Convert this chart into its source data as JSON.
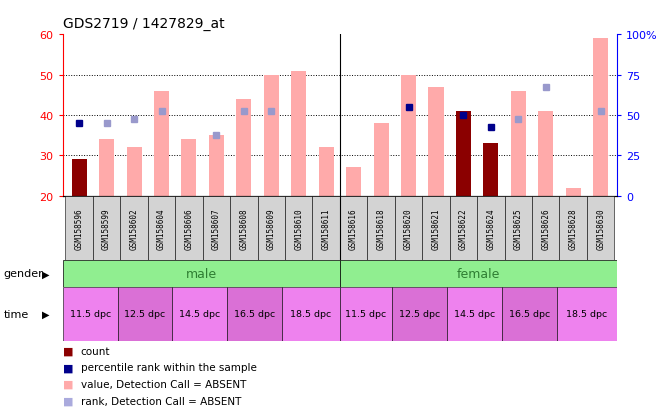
{
  "title": "GDS2719 / 1427829_at",
  "samples": [
    "GSM158596",
    "GSM158599",
    "GSM158602",
    "GSM158604",
    "GSM158606",
    "GSM158607",
    "GSM158608",
    "GSM158609",
    "GSM158610",
    "GSM158611",
    "GSM158616",
    "GSM158618",
    "GSM158620",
    "GSM158621",
    "GSM158622",
    "GSM158624",
    "GSM158625",
    "GSM158626",
    "GSM158628",
    "GSM158630"
  ],
  "bar_values": [
    29,
    34,
    32,
    46,
    34,
    35,
    44,
    50,
    51,
    32,
    27,
    38,
    50,
    47,
    41,
    33,
    46,
    41,
    22,
    59
  ],
  "bar_colors": [
    "#8B0000",
    "#FFAAAA",
    "#FFAAAA",
    "#FFAAAA",
    "#FFAAAA",
    "#FFAAAA",
    "#FFAAAA",
    "#FFAAAA",
    "#FFAAAA",
    "#FFAAAA",
    "#FFAAAA",
    "#FFAAAA",
    "#FFAAAA",
    "#FFAAAA",
    "#8B0000",
    "#8B0000",
    "#FFAAAA",
    "#FFAAAA",
    "#FFAAAA",
    "#FFAAAA"
  ],
  "dot_values": [
    38,
    38,
    39,
    41,
    null,
    35,
    41,
    41,
    null,
    null,
    null,
    null,
    42,
    null,
    40,
    37,
    39,
    47,
    null,
    41
  ],
  "dot_is_dark": [
    true,
    false,
    false,
    false,
    false,
    false,
    false,
    false,
    false,
    false,
    false,
    false,
    true,
    false,
    true,
    true,
    false,
    false,
    false,
    false
  ],
  "ylim_left": [
    20,
    60
  ],
  "ylim_right": [
    0,
    100
  ],
  "yticks_left": [
    20,
    30,
    40,
    50,
    60
  ],
  "yticks_right": [
    0,
    25,
    50,
    75,
    100
  ],
  "ytick_labels_right": [
    "0",
    "25",
    "50",
    "75",
    "100%"
  ],
  "bar_bottom": 20,
  "dot_dark_color": "#00008B",
  "dot_light_color": "#9999CC",
  "gender_male_color": "#90EE90",
  "gender_female_color": "#90EE90",
  "gender_male_text_color": "#2E7D32",
  "gender_female_text_color": "#2E7D32",
  "time_colors_alt": [
    "#EE82EE",
    "#DA70D6"
  ],
  "legend_items": [
    {
      "color": "#8B0000",
      "label": "count"
    },
    {
      "color": "#00008B",
      "label": "percentile rank within the sample"
    },
    {
      "color": "#FFAAAA",
      "label": "value, Detection Call = ABSENT"
    },
    {
      "color": "#AAAADD",
      "label": "rank, Detection Call = ABSENT"
    }
  ]
}
